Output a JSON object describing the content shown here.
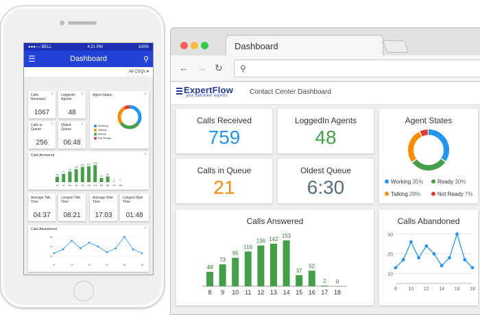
{
  "phone": {
    "status": {
      "carrier": "●●●○○ BELL",
      "time": "4:21 PM",
      "battery": "100%"
    },
    "title": "Dashboard",
    "filter": "All CSQs",
    "cards": [
      {
        "label": "Calls Received",
        "value": "1067"
      },
      {
        "label": "LoggedIn Agents",
        "value": "48"
      },
      {
        "label": "Calls in Queue",
        "value": "256"
      },
      {
        "label": "Oldest Queue",
        "value": "06:48"
      }
    ],
    "agent_status_label": "Agent Status",
    "agent_legend": [
      "Working",
      "Talking",
      "Ready",
      "Not Ready"
    ],
    "calls_answered_label": "Calls Answered",
    "calls_abandoned_label": "Calls Abandoned",
    "time_cards": [
      {
        "label": "Average Talk Time",
        "value": "04:37"
      },
      {
        "label": "Longest Talk Time",
        "value": "08:21"
      },
      {
        "label": "Average Wait Time",
        "value": "17:03"
      },
      {
        "label": "Longest Wait Time",
        "value": "01:48"
      }
    ]
  },
  "browser": {
    "tab_title": "Dashboard",
    "logo_text": "ExpertFlow",
    "logo_tagline": "your callcenter experts",
    "header_title": "Contact Center Dashboard"
  },
  "dashboard": {
    "calls_received": {
      "label": "Calls Received",
      "value": "759",
      "color": "#2196f3"
    },
    "loggedin_agents": {
      "label": "LoggedIn Agents",
      "value": "48",
      "color": "#43a047"
    },
    "calls_in_queue": {
      "label": "Calls in Queue",
      "value": "21",
      "color": "#fb8c00"
    },
    "oldest_queue": {
      "label": "Oldest Queue",
      "value": "6:30",
      "color": "#546e7a"
    },
    "agent_states": {
      "label": "Agent States",
      "items": [
        {
          "name": "Working",
          "pct": "35%",
          "value": 35,
          "color": "#2196f3"
        },
        {
          "name": "Ready",
          "pct": "30%",
          "value": 30,
          "color": "#43a047"
        },
        {
          "name": "Talking",
          "pct": "28%",
          "value": 28,
          "color": "#fb8c00"
        },
        {
          "name": "Not Ready",
          "pct": "7%",
          "value": 7,
          "color": "#e53935"
        }
      ]
    },
    "calls_answered_label": "Calls Answered",
    "calls_abandoned_label": "Calls Abandoned"
  },
  "chart_data": [
    {
      "type": "bar",
      "title": "Calls Answered",
      "categories": [
        "8",
        "9",
        "10",
        "11",
        "12",
        "13",
        "14",
        "15",
        "16",
        "17",
        "18"
      ],
      "values": [
        48,
        73,
        95,
        116,
        136,
        142,
        153,
        37,
        52,
        2,
        0
      ],
      "ylim": [
        0,
        160
      ]
    },
    {
      "type": "line",
      "title": "Calls Abandoned",
      "x": [
        8,
        9,
        10,
        11,
        12,
        13,
        14,
        15,
        16,
        17,
        18
      ],
      "xticks": [
        "8",
        "10",
        "12",
        "14",
        "16",
        "18"
      ],
      "values": [
        13,
        17,
        26,
        18,
        24,
        20,
        14,
        18,
        30,
        17,
        13
      ],
      "yticks": [
        "10",
        "20",
        "30"
      ],
      "ylim": [
        5,
        32
      ]
    }
  ]
}
